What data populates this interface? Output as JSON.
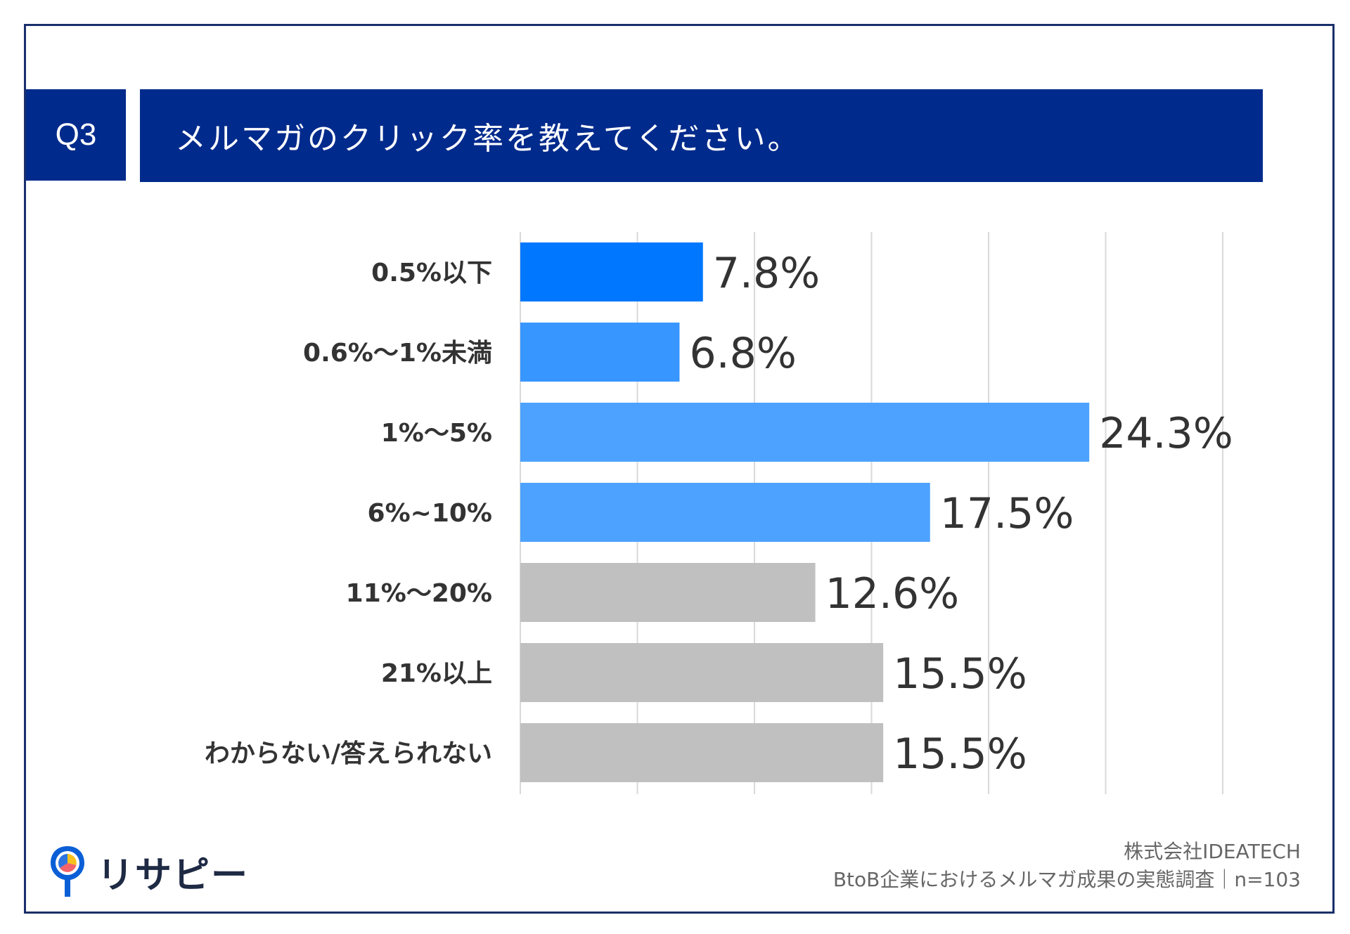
{
  "header": {
    "question_no": "Q3",
    "question": "メルマガのクリック率を教えてください。"
  },
  "chart_data": {
    "type": "bar",
    "orientation": "horizontal",
    "title": "メルマガのクリック率を教えてください。",
    "categories": [
      "0.5%以下",
      "0.6%～1%未満",
      "1%～5%",
      "6%~10%",
      "11%～20%",
      "21%以上",
      "わからない/答えられない"
    ],
    "values": [
      7.8,
      6.8,
      24.3,
      17.5,
      12.6,
      15.5,
      15.5
    ],
    "data_labels": [
      "7.8%",
      "6.8%",
      "24.3%",
      "17.5%",
      "12.6%",
      "15.5%",
      "15.5%"
    ],
    "bar_colors": [
      "#0077ff",
      "#3796ff",
      "#4da2ff",
      "#4da2ff",
      "#c0c0c0",
      "#c0c0c0",
      "#c0c0c0"
    ],
    "xlim": [
      0,
      30
    ],
    "grid": true,
    "xlabel": "",
    "ylabel": ""
  },
  "branding": {
    "logo_text": "リサピー"
  },
  "footer": {
    "company": "株式会社IDEATECH",
    "survey": "BtoB企業におけるメルマガ成果の実態調査｜n=103"
  },
  "colors": {
    "navy": "#002a8c",
    "text": "#333333"
  }
}
